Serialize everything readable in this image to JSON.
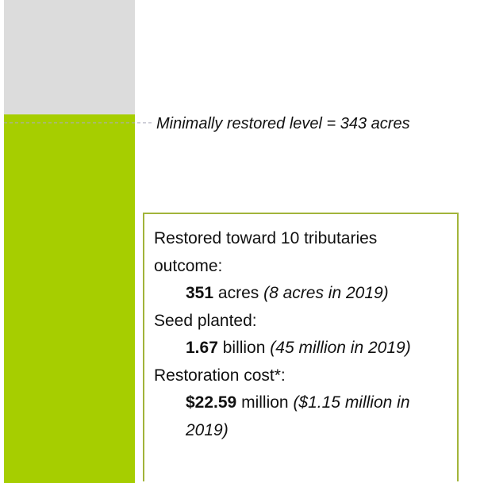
{
  "chart_data": {
    "type": "bar",
    "values": [
      351
    ],
    "color": "#a6ce00",
    "track_color": "#dcdcdc",
    "ylim": [
      0,
      460
    ],
    "reference_line": {
      "value": 343,
      "label": "Minimally restored level = 343 acres"
    },
    "info_box": [
      {
        "heading": "Restored toward 10 tributaries outcome:",
        "amount": "351",
        "unit": "acres",
        "note": "(8 acres in 2019)"
      },
      {
        "heading": "Seed planted:",
        "amount": "1.67",
        "unit": "billion",
        "note": "(45 million in 2019)"
      },
      {
        "heading": "Restoration cost*:",
        "amount": "$22.59",
        "unit": "million",
        "note": "($1.15 million in 2019)"
      }
    ]
  }
}
